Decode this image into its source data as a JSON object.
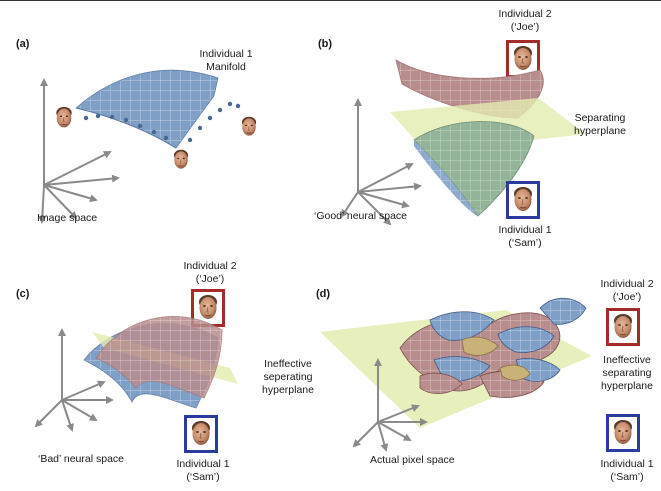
{
  "panels": {
    "a": {
      "label": "(a)",
      "manifold_title_line1": "Individual 1",
      "manifold_title_line2": "Manifold",
      "space_label": "Image space"
    },
    "b": {
      "label": "(b)",
      "ind2_line1": "Individual 2",
      "ind2_line2": "(‘Joe’)",
      "plane_line1": "Separating",
      "plane_line2": "hyperplane",
      "ind1_line1": "Individual 1",
      "ind1_line2": "(‘Sam’)",
      "space_label": "‘Good’ neural space"
    },
    "c": {
      "label": "(c)",
      "ind2_line1": "Individual 2",
      "ind2_line2": "(‘Joe’)",
      "plane_line1": "Ineffective",
      "plane_line2": "seperating",
      "plane_line3": "hyperplane",
      "ind1_line1": "Individual 1",
      "ind1_line2": "(‘Sam’)",
      "space_label": "‘Bad’ neural space"
    },
    "d": {
      "label": "(d)",
      "ind2_line1": "Individual 2",
      "ind2_line2": "(‘Joe’)",
      "plane_line1": "Ineffective",
      "plane_line2": "separating",
      "plane_line3": "hyperplane",
      "ind1_line1": "Individual 1",
      "ind1_line2": "(‘Sam’)",
      "space_label": "Actual pixel space"
    }
  },
  "colors": {
    "individual1": "#2b3a9e",
    "individual2": "#a52a2a",
    "manifold_blue": "#7f9fc4",
    "manifold_red": "#b98c8c",
    "plane": "#e3ecb0",
    "axis": "#8a8a8a"
  }
}
